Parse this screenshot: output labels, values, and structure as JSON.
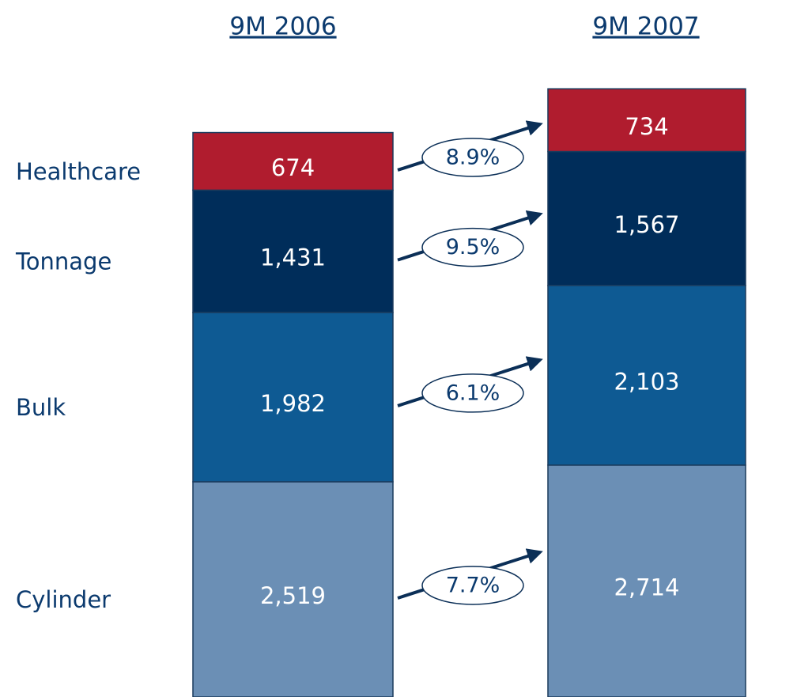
{
  "chart_data": {
    "type": "stacked-bar",
    "categories": [
      "9M 2006",
      "9M 2007"
    ],
    "series": [
      {
        "name": "Cylinder",
        "color": "#6b8fb5",
        "values": [
          2519,
          2714
        ],
        "value_labels": [
          "2,519",
          "2,714"
        ]
      },
      {
        "name": "Bulk",
        "color": "#0e5a93",
        "values": [
          1982,
          2103
        ],
        "value_labels": [
          "1,982",
          "2,103"
        ]
      },
      {
        "name": "Tonnage",
        "color": "#002d5a",
        "values": [
          1431,
          1567
        ],
        "value_labels": [
          "1,431",
          "1,567"
        ]
      },
      {
        "name": "Healthcare",
        "color": "#b01c2e",
        "values": [
          674,
          734
        ],
        "value_labels": [
          "674",
          "734"
        ]
      }
    ],
    "annotations": [
      "7.7%",
      "6.1%",
      "9.5%",
      "8.9%"
    ],
    "ylim": [
      0,
      8000
    ]
  }
}
